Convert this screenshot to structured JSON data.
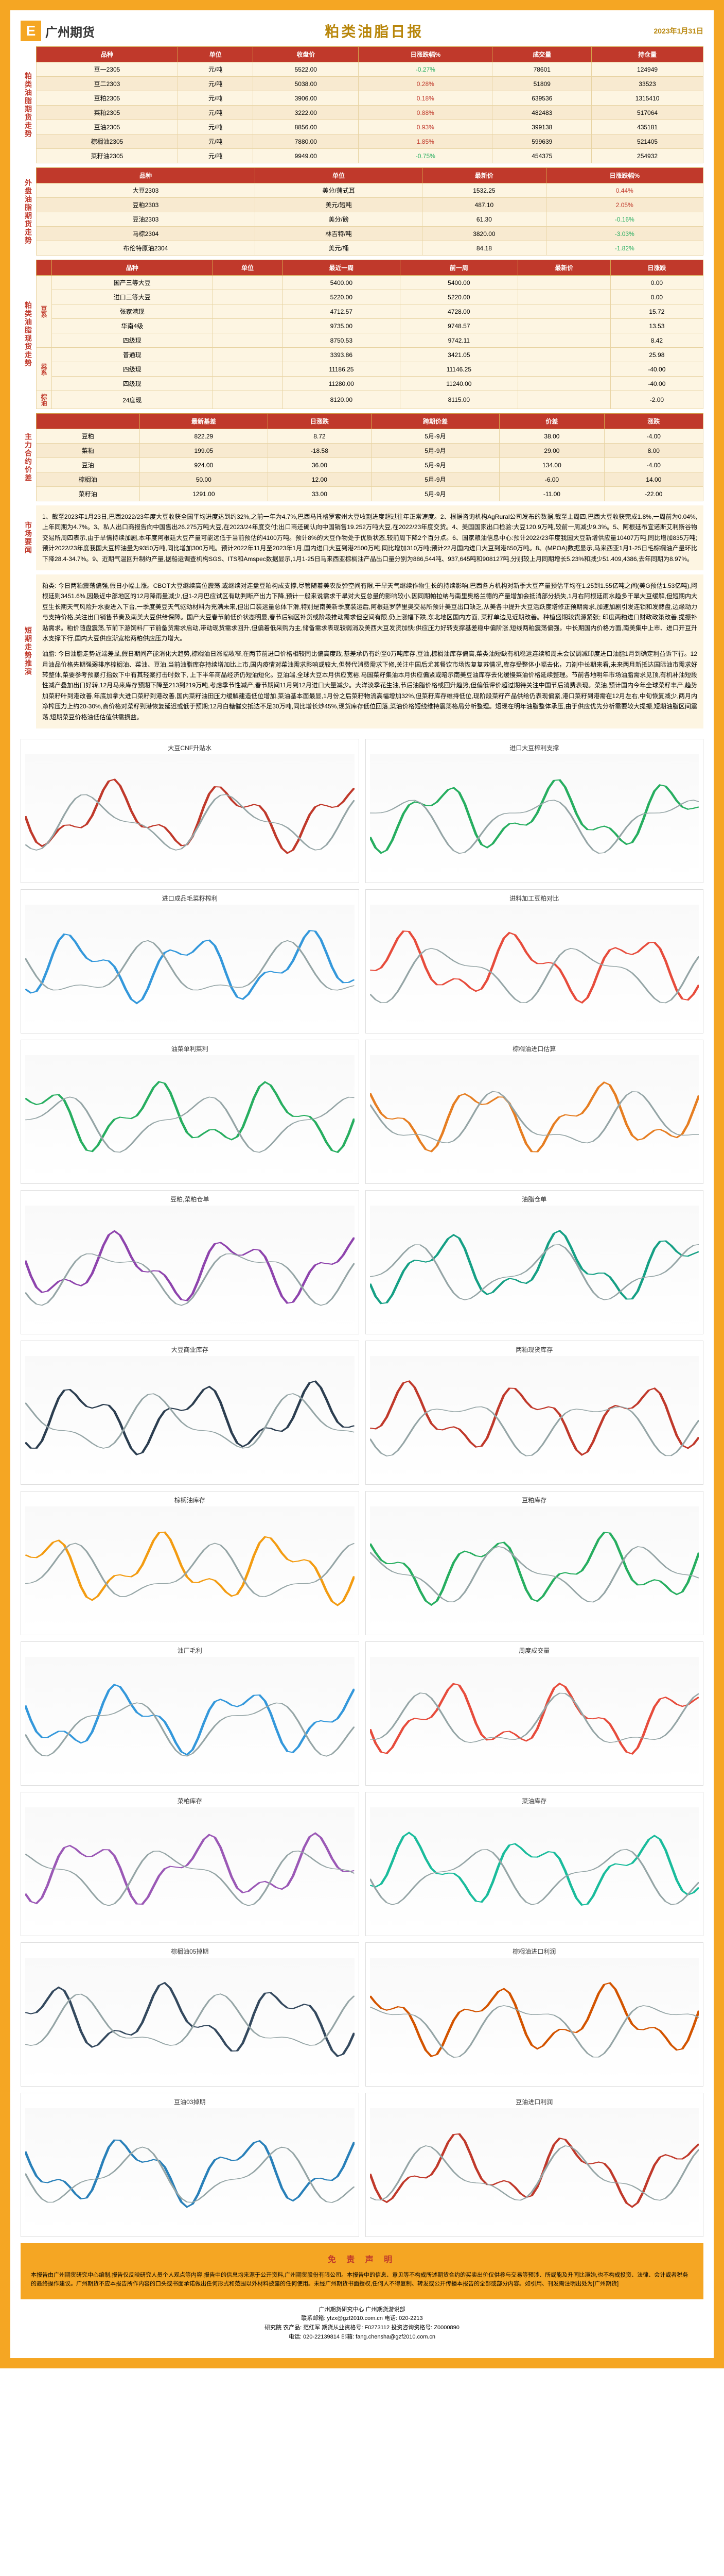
{
  "header": {
    "logo_text": "广州期货",
    "title": "粕类油脂日报",
    "date": "2023年1月31日"
  },
  "sections": {
    "s1": {
      "label": "粕类油脂期货走势"
    },
    "s2": {
      "label": "外盘油脂期货走势"
    },
    "s3": {
      "label": "粕类油脂现货走势"
    },
    "s4": {
      "label": "主力合约价差"
    },
    "s5": {
      "label": "市场要闻"
    },
    "s6": {
      "label": "短期走势推演"
    }
  },
  "table1": {
    "headers": [
      "品种",
      "单位",
      "收盘价",
      "日涨跌幅%",
      "成交量",
      "持仓量"
    ],
    "rows": [
      {
        "cells": [
          "豆一2305",
          "元/吨",
          "5522.00",
          "-0.27%",
          "78601",
          "124949"
        ],
        "chg": -0.27
      },
      {
        "cells": [
          "豆二2303",
          "元/吨",
          "5038.00",
          "0.28%",
          "51809",
          "33523"
        ],
        "chg": 0.28
      },
      {
        "cells": [
          "豆粕2305",
          "元/吨",
          "3906.00",
          "0.18%",
          "639536",
          "1315410"
        ],
        "chg": 0.18
      },
      {
        "cells": [
          "菜粕2305",
          "元/吨",
          "3222.00",
          "0.88%",
          "482483",
          "517064"
        ],
        "chg": 0.88
      },
      {
        "cells": [
          "豆油2305",
          "元/吨",
          "8856.00",
          "0.93%",
          "399138",
          "435181"
        ],
        "chg": 0.93
      },
      {
        "cells": [
          "棕榈油2305",
          "元/吨",
          "7880.00",
          "1.85%",
          "599639",
          "521405"
        ],
        "chg": 1.85
      },
      {
        "cells": [
          "菜籽油2305",
          "元/吨",
          "9949.00",
          "-0.75%",
          "454375",
          "254932"
        ],
        "chg": -0.75
      }
    ]
  },
  "table2": {
    "headers": [
      "品种",
      "单位",
      "最新价",
      "日涨跌幅%"
    ],
    "rows": [
      {
        "cells": [
          "大豆2303",
          "美分/蒲式耳",
          "1532.25",
          "0.44%"
        ],
        "chg": 0.44
      },
      {
        "cells": [
          "豆粕2303",
          "美元/短吨",
          "487.10",
          "2.05%"
        ],
        "chg": 2.05
      },
      {
        "cells": [
          "豆油2303",
          "美分/磅",
          "61.30",
          "-0.16%"
        ],
        "chg": -0.16
      },
      {
        "cells": [
          "马棕2304",
          "林吉特/吨",
          "3820.00",
          "-3.03%"
        ],
        "chg": -3.03
      },
      {
        "cells": [
          "布伦特原油2304",
          "美元/桶",
          "84.18",
          "-1.82%"
        ],
        "chg": -1.82
      }
    ]
  },
  "table3": {
    "headers": [
      "",
      "品种",
      "单位",
      "最近一周",
      "前一周",
      "最新价",
      "日涨跌"
    ],
    "groups": [
      {
        "label": "豆系",
        "rows": [
          {
            "cells": [
              "国产三等大豆",
              "",
              "5400.00",
              "5400.00",
              "",
              "0.00"
            ]
          },
          {
            "cells": [
              "进口三等大豆",
              "",
              "5220.00",
              "5220.00",
              "",
              "0.00"
            ]
          },
          {
            "cells": [
              "张家港现",
              "",
              "4712.57",
              "4728.00",
              "",
              "15.72"
            ]
          },
          {
            "cells": [
              "华南4级",
              "",
              "9735.00",
              "9748.57",
              "",
              "13.53"
            ]
          },
          {
            "cells": [
              "四级现",
              "",
              "8750.53",
              "9742.11",
              "",
              "8.42"
            ]
          }
        ]
      },
      {
        "label": "菜系",
        "rows": [
          {
            "cells": [
              "普通现",
              "",
              "3393.86",
              "3421.05",
              "",
              "25.98"
            ]
          },
          {
            "cells": [
              "四级现",
              "",
              "11186.25",
              "11146.25",
              "",
              "-40.00"
            ]
          },
          {
            "cells": [
              "四级现",
              "",
              "11280.00",
              "11240.00",
              "",
              "-40.00"
            ]
          }
        ]
      },
      {
        "label": "棕油",
        "rows": [
          {
            "cells": [
              "24度现",
              "",
              "8120.00",
              "8115.00",
              "",
              "-2.00"
            ]
          }
        ]
      }
    ]
  },
  "table4": {
    "headers": [
      "",
      "最新基差",
      "日涨跌",
      "跨期价差",
      "价差",
      "涨跌"
    ],
    "rows": [
      {
        "cells": [
          "豆粕",
          "822.29",
          "8.72",
          "5月-9月",
          "38.00",
          "-4.00"
        ]
      },
      {
        "cells": [
          "菜粕",
          "199.05",
          "-18.58",
          "5月-9月",
          "29.00",
          "8.00"
        ]
      },
      {
        "cells": [
          "豆油",
          "924.00",
          "36.00",
          "5月-9月",
          "134.00",
          "-4.00"
        ]
      },
      {
        "cells": [
          "棕榈油",
          "50.00",
          "12.00",
          "5月-9月",
          "-6.00",
          "14.00"
        ]
      },
      {
        "cells": [
          "菜籽油",
          "1291.00",
          "33.00",
          "5月-9月",
          "-11.00",
          "-22.00"
        ]
      }
    ]
  },
  "news": {
    "items": [
      "1、截至2023年1月23日,巴西2022/23年度大豆收获全国平均进度达到约32%,之前一年为4.7%,巴西马托格罗索州大豆收割进度超过往年正常速度。2、根据咨询机构AgRural公司发布的数据,截至上周四,巴西大豆收获完成1.8%,一周前为0.04%,上年同期为4.7%。3、私人出口商报告向中国售出26.275万吨大豆,在2023/24年度交付;出口商还确认向中国销售19.252万吨大豆,在2022/23年度交货。4、美国国家出口检验:大豆120.9万吨,较前一周减少9.3%。5、阿根廷布宜诺斯艾利斯谷物交易所周四表示,由于旱情持续加剧,本年度阿根廷大豆产量可能远低于当前预估的4100万吨。预计8%的大豆作物处于优质状态,较前周下降2个百分点。6、国家粮油信息中心:预计2022/23年度我国大豆新增供应量10407万吨,同比增加835万吨;预计2022/23年度我国大豆榨油量为9350万吨,同比增加300万吨。预计2022年11月至2023年1月,国内进口大豆到港2500万吨,同比增加310万吨;预计22月国内进口大豆到港650万吨。8、(MPOA)数据显示,马来西亚1月1-25日毛棕榈油产量环比下降28.4-34.7%。9、近期气温回升制约产量,据船运调查机构SGS、ITS和Amspec数据显示,1月1-25日马来西亚棕榈油产品出口量分别为886,544吨、937,645吨和908127吨,分别较上月同期增长5.23%和减少51.409,4386,去年同期为8.97%。"
    ]
  },
  "analysis": {
    "p1": "粕类: 今日两粕震荡偏强,假日小幅上涨。CBOT大豆继续高位震荡,或继续对连盘豆粕构成支撑,尽管随着美农反弹空间有限,干旱天气继续作物生长的持续影响,巴西各方机构对新季大豆产量预估平均在1.25到1.55亿吨之间(美G预估1.53亿吨),阿根廷则3451.6%,因最近中部地区的12月降雨量减少,但1-2月巴应试区有助判断产出力下降,预计一般来说需求干旱对大豆总量的影响较小,因同期帕拉纳与南里奥格兰德的产量增加会抵消部分损失,1月右阿根廷雨水趋多干旱大豆缓解,但短期内大豆生长期天气风险升水要进入下台,一季度美豆天气驱动材料为充满未来,但出口装运量总体下滑,特别是南美新季度装运后,阿根廷罗萨里奥交易所预计美豆出口缺乏,从美各中提升大豆活跃度塔修正预期需求,加速加剧引发连锁和发酵盘,边缘动力与支持价格,关注出口销售节奏及南美大豆供给保障。国产大豆春节前低价状态明显,春节后销区补货或阶段推动需求但空间有限,仍上涨幅下跌,东北地区国内方面, 菜籽单边见近期改善。种植盛期较货源紧张; 印度两粕进口财政政策改善,提振补贴需求。粕价随盘震荡,节前下游饲料厂节前备货需求启动,带动现货需求回升,但偏着低采购为主,储备需求表现较弱消及美西大豆发货加快:供应压力好转支撑基差稳中偏阶涨,短线两粕震荡偏强。中长期国内价格方面,南美集中上市、进口开豆升水支撑下行,国内大豆供应渐宽松两粕供应压力增大。",
    "p2": "油脂: 今日油脂走势近端差显,假日期间产能消化大趋势,棕榈油日涨幅收窄,在两节前进口价格相较同比偏高度政,基差承仍有约至0万吨库存,豆油,棕榈油库存偏高,菜类油短缺有机稳运连续和周末会议调减印度进口油脂1月到确定利益诉下行。12月油品价格先期强弱排序棕榈油、菜油、豆油,当前油脂库存持续增加比上市,国内疫情对菜油需求影响或较大,但替代消费需求下修,关注中国后尤其餐饮市场恢复复苏情况,库存受整体小幅去化，刀劄中长期来看,未来两月新抵达国际油市需求好转整体,菜要参考预暴打指数下中有其轻案打击时数下, 上下半年商品经济仍短油短化。豆油端,全球大豆本月供应宽裕,马国菜籽集油本月供应偏紧或暗示南美豆油库存去化缓慢菜油价格延续整理。节前各地明年市场油脂需求见顶,有机补油短段性减产叠加出口好转,12月马来库存预期下降至213到219万吨,考虑季节性减产,春节期间11月到12月进口大量减少。大洋淡季花生油,节后油脂价格或回升趋势,但偏低评价超过期待关注中国节后消费表现。菜油,预计国内今年全球菜籽丰产,趋势加菜籽叶到港改善,年底加拿大进口菜籽到港改善,国内菜籽油田压力缓解建造低位增加,菜油基本面最显,1月份之后菜籽物流高幅增加32%,但菜籽库存维持低位,现阶段菜籽产品供给仍表现偏紧,港口菜籽到港需在12月左右,中旬恢复减少,两月内净榨压力上约20-30%,高价格对菜籽到港恢复延迟或低于预期;12月白糖催交抵达不足30万吨,同比增长炒45%,现货库存低位回落,菜油价格短线维持震荡格局分析整理。短现在明年油脂整体承压,由于供应优先分析需要较大提振,短期油脂区间震荡,短期菜豆价格油低估值供需损益。"
  },
  "charts": [
    {
      "title": "大豆CNF升贴水",
      "color": "#c0392b"
    },
    {
      "title": "进口大豆榨利支撑",
      "color": "#27ae60"
    },
    {
      "title": "进口成品毛菜籽榨利",
      "color": "#3498db"
    },
    {
      "title": "进料加工豆粕对比",
      "color": "#e74c3c"
    },
    {
      "title": "油菜单利菜利",
      "color": "#27ae60"
    },
    {
      "title": "棕榈油进口估算",
      "color": "#e67e22"
    },
    {
      "title": "豆粕,菜粕仓单",
      "color": "#8e44ad"
    },
    {
      "title": "油脂仓单",
      "color": "#16a085"
    },
    {
      "title": "大豆商业库存",
      "color": "#2c3e50"
    },
    {
      "title": "两粕现货库存",
      "color": "#c0392b"
    },
    {
      "title": "棕榈油库存",
      "color": "#f39c12"
    },
    {
      "title": "豆粕库存",
      "color": "#27ae60"
    },
    {
      "title": "油厂毛利",
      "color": "#3498db"
    },
    {
      "title": "周度成交量",
      "color": "#e74c3c"
    },
    {
      "title": "菜粕库存",
      "color": "#9b59b6"
    },
    {
      "title": "菜油库存",
      "color": "#1abc9c"
    },
    {
      "title": "棕榈油05掉期",
      "color": "#34495e"
    },
    {
      "title": "棕榈油进口利润",
      "color": "#d35400"
    },
    {
      "title": "豆油03掉期",
      "color": "#2980b9"
    },
    {
      "title": "豆油进口利润",
      "color": "#c0392b"
    }
  ],
  "disclaimer": {
    "title": "免 责 声 明",
    "text": "本报告由广州期货研究中心编制,报告仅反映研究人员个人观点等内容,报告中的信息均来源于公开资料,广州期货股份有限公司。本报告中的信息、意见等不构成所述期货合约的买卖出价仅供参与交易等预涉、所或能及升同比演始,也不构成投资、法律、会计或者税务的最终操作建议。广州期货不应本报告所作内容的口头或书面承诺做出任何形式和范围以外材料披露的任何使用。未经广州期货书面授权,任何人不得复制、转发或公开传播本报告的全部或部分内容。如引用、刊发需注明出处为[广州期货]"
  },
  "footer": {
    "company": "广州期货研究中心   广州期货游说部",
    "address": "联系邮箱: yfzx@gzf2010.com.cn   电话: 020-2213",
    "person1": "研究院 农产品: 范红军 期货从业资格号: F0273112   投资咨询资格号: Z0000890",
    "contact1": "电话: 020-22139814   邮箱: fang.chensha@gzf2010.com.cn"
  },
  "style": {
    "border_color": "#f5a623",
    "header_red": "#c0392b",
    "accent_gold": "#b8860b",
    "row_odd": "#fdf5e2",
    "row_even": "#f8ead0"
  }
}
